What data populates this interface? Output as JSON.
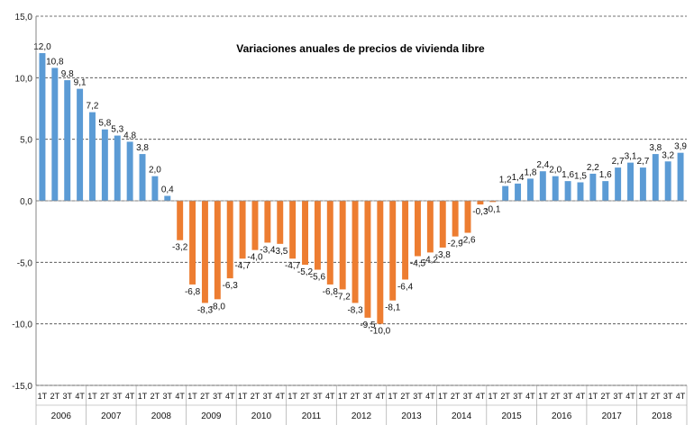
{
  "chart_data": {
    "type": "bar",
    "title": "Variaciones anuales de precios de vivienda libre",
    "ylim": [
      -15,
      15
    ],
    "yticks": [
      "15,0",
      "10,0",
      "5,0",
      "0,0",
      "-5,0",
      "-10,0",
      "-15,0"
    ],
    "grid": "horizontal dashed",
    "colors": {
      "positive": "#5b9bd5",
      "negative": "#ed7d31"
    },
    "quarter_labels": [
      "1T",
      "2T",
      "3T",
      "4T"
    ],
    "years": [
      "2006",
      "2007",
      "2008",
      "2009",
      "2010",
      "2011",
      "2012",
      "2013",
      "2014",
      "2015",
      "2016",
      "2017",
      "2018"
    ],
    "values": [
      12.0,
      10.8,
      9.8,
      9.1,
      7.2,
      5.8,
      5.3,
      4.8,
      3.8,
      2.0,
      0.4,
      -3.2,
      -6.8,
      -8.3,
      -8.0,
      -6.3,
      -4.7,
      -4.0,
      -3.4,
      -3.5,
      -4.7,
      -5.2,
      -5.6,
      -6.8,
      -7.2,
      -8.3,
      -9.5,
      -10.0,
      -8.1,
      -6.4,
      -4.5,
      -4.2,
      -3.8,
      -2.9,
      -2.6,
      -0.3,
      -0.1,
      1.2,
      1.4,
      1.8,
      2.4,
      2.0,
      1.6,
      1.5,
      2.2,
      1.6,
      2.7,
      3.1,
      2.7,
      3.8,
      3.2,
      3.9
    ],
    "labels": [
      "12,0",
      "10,8",
      "9,8",
      "9,1",
      "7,2",
      "5,8",
      "5,3",
      "4,8",
      "3,8",
      "2,0",
      "0,4",
      "-3,2",
      "-6,8",
      "-8,3",
      "-8,0",
      "-6,3",
      "-4,7",
      "-4,0",
      "-3,4",
      "-3,5",
      "-4,7",
      "-5,2",
      "-5,6",
      "-6,8",
      "-7,2",
      "-8,3",
      "-9,5",
      "-10,0",
      "-8,1",
      "-6,4",
      "-4,5",
      "-4,2",
      "-3,8",
      "-2,9",
      "-2,6",
      "-0,3",
      "-0,1",
      "1,2",
      "1,4",
      "1,8",
      "2,4",
      "2,0",
      "1,6",
      "1,5",
      "2,2",
      "1,6",
      "2,7",
      "3,1",
      "2,7",
      "3,8",
      "3,2",
      "3,9"
    ]
  }
}
